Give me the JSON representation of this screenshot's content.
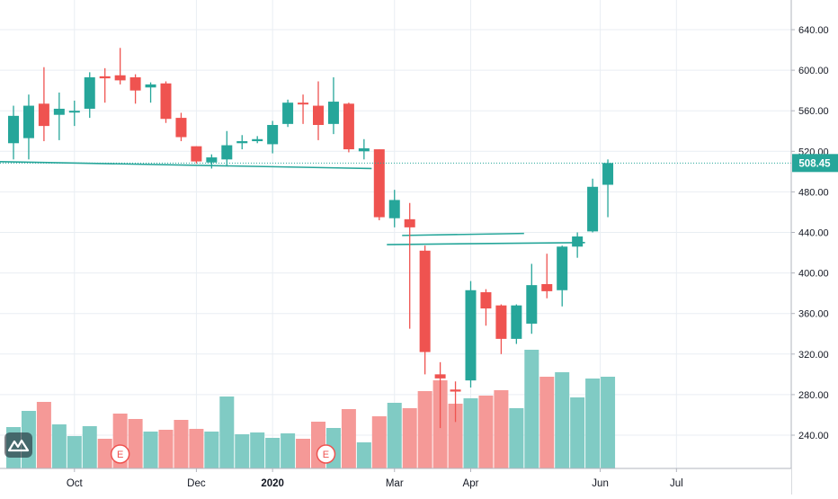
{
  "chart_data": {
    "type": "candlestick",
    "title": "",
    "xlabel": "",
    "ylabel": "",
    "interval": "weekly",
    "ylim": [
      200,
      670
    ],
    "y_ticks": [
      240,
      280,
      320,
      360,
      400,
      440,
      480,
      520,
      560,
      600,
      640
    ],
    "y_tick_labels": [
      "240.00",
      "280.00",
      "320.00",
      "360.00",
      "400.00",
      "440.00",
      "480.00",
      "520.00",
      "560.00",
      "600.00",
      "640.00"
    ],
    "x_labels": [
      {
        "label": "Oct",
        "index": 4
      },
      {
        "label": "Dec",
        "index": 12
      },
      {
        "label": "2020",
        "index": 17,
        "bold": true
      },
      {
        "label": "Mar",
        "index": 25
      },
      {
        "label": "Apr",
        "index": 30
      },
      {
        "label": "Jun",
        "index": 38.5
      },
      {
        "label": "Jul",
        "index": 43.5
      }
    ],
    "last_price": 508.45,
    "last_price_label": "508.45",
    "colors": {
      "up": "#26a69a",
      "down": "#ef5350",
      "up_volume": "#80cbc4",
      "down_volume": "#f59997",
      "grid": "#e9eef3"
    },
    "candles": [
      {
        "o": 528,
        "h": 565,
        "l": 512,
        "c": 555
      },
      {
        "o": 533,
        "h": 576,
        "l": 512,
        "c": 565
      },
      {
        "o": 567,
        "h": 603,
        "l": 530,
        "c": 545
      },
      {
        "o": 556,
        "h": 578,
        "l": 531,
        "c": 562
      },
      {
        "o": 560,
        "h": 570,
        "l": 545,
        "c": 560
      },
      {
        "o": 562,
        "h": 598,
        "l": 553,
        "c": 593
      },
      {
        "o": 594,
        "h": 602,
        "l": 568,
        "c": 592
      },
      {
        "o": 595,
        "h": 622,
        "l": 586,
        "c": 590
      },
      {
        "o": 593,
        "h": 596,
        "l": 567,
        "c": 580
      },
      {
        "o": 583,
        "h": 588,
        "l": 568,
        "c": 586
      },
      {
        "o": 587,
        "h": 589,
        "l": 548,
        "c": 552
      },
      {
        "o": 553,
        "h": 558,
        "l": 530,
        "c": 534
      },
      {
        "o": 525,
        "h": 525,
        "l": 508,
        "c": 510
      },
      {
        "o": 509,
        "h": 517,
        "l": 503,
        "c": 514
      },
      {
        "o": 512,
        "h": 540,
        "l": 506,
        "c": 526
      },
      {
        "o": 528,
        "h": 536,
        "l": 522,
        "c": 530
      },
      {
        "o": 530,
        "h": 535,
        "l": 528,
        "c": 532
      },
      {
        "o": 527,
        "h": 550,
        "l": 518,
        "c": 546
      },
      {
        "o": 547,
        "h": 571,
        "l": 544,
        "c": 568
      },
      {
        "o": 568,
        "h": 576,
        "l": 547,
        "c": 567
      },
      {
        "o": 565,
        "h": 589,
        "l": 531,
        "c": 546
      },
      {
        "o": 547,
        "h": 593,
        "l": 537,
        "c": 569
      },
      {
        "o": 567,
        "h": 568,
        "l": 519,
        "c": 522
      },
      {
        "o": 520,
        "h": 532,
        "l": 512,
        "c": 523
      },
      {
        "o": 522,
        "h": 522,
        "l": 452,
        "c": 455
      },
      {
        "o": 454,
        "h": 482,
        "l": 445,
        "c": 472
      },
      {
        "o": 453,
        "h": 469,
        "l": 345,
        "c": 445
      },
      {
        "o": 422,
        "h": 427,
        "l": 300,
        "c": 322
      },
      {
        "o": 300,
        "h": 312,
        "l": 247,
        "c": 296
      },
      {
        "o": 285,
        "h": 293,
        "l": 253,
        "c": 283
      },
      {
        "o": 294,
        "h": 392,
        "l": 287,
        "c": 383
      },
      {
        "o": 381,
        "h": 384,
        "l": 348,
        "c": 365
      },
      {
        "o": 368,
        "h": 369,
        "l": 320,
        "c": 335
      },
      {
        "o": 335,
        "h": 369,
        "l": 330,
        "c": 368
      },
      {
        "o": 350,
        "h": 409,
        "l": 340,
        "c": 388
      },
      {
        "o": 389,
        "h": 419,
        "l": 375,
        "c": 382
      },
      {
        "o": 383,
        "h": 427,
        "l": 367,
        "c": 426
      },
      {
        "o": 426,
        "h": 440,
        "l": 415,
        "c": 436
      },
      {
        "o": 441,
        "h": 493,
        "l": 440,
        "c": 485
      },
      {
        "o": 487,
        "h": 512,
        "l": 455,
        "c": 508.45
      }
    ],
    "volume_heights": [
      46,
      64,
      74,
      49,
      36,
      47,
      33,
      61,
      55,
      41,
      43,
      54,
      44,
      41,
      80,
      38,
      40,
      34,
      39,
      33,
      52,
      45,
      66,
      29,
      58,
      73,
      67,
      86,
      98,
      72,
      78,
      81,
      87,
      67,
      132,
      102,
      107,
      79,
      100,
      102
    ],
    "trendlines": [
      {
        "from": [
          -1.5,
          510
        ],
        "to": [
          23.5,
          503
        ]
      },
      {
        "from": [
          25.5,
          437
        ],
        "to": [
          33.5,
          439
        ]
      },
      {
        "from": [
          24.5,
          428
        ],
        "to": [
          37.5,
          430
        ]
      }
    ],
    "events": [
      {
        "label": "E",
        "index": 7
      },
      {
        "label": "E",
        "index": 20.5
      }
    ]
  }
}
